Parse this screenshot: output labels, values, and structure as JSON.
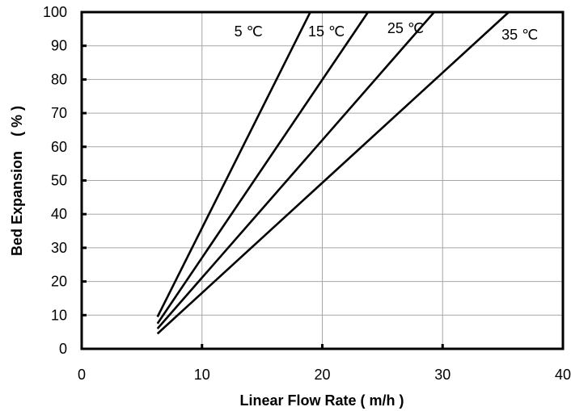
{
  "chart_data": {
    "type": "line",
    "xlabel": "Linear Flow Rate ( m/h )",
    "ylabel": "Bed Expansion　( % )",
    "xlim": [
      0,
      40
    ],
    "ylim": [
      0,
      100
    ],
    "xticks": [
      "0",
      "10",
      "20",
      "30",
      "40"
    ],
    "yticks": [
      "0",
      "10",
      "20",
      "30",
      "40",
      "50",
      "60",
      "70",
      "80",
      "90",
      "100"
    ],
    "grid": true,
    "series": [
      {
        "name": "5 ℃",
        "x": [
          6.3,
          19.0
        ],
        "y": [
          9.5,
          100
        ]
      },
      {
        "name": "15 ℃",
        "x": [
          6.3,
          23.8
        ],
        "y": [
          7.5,
          100
        ]
      },
      {
        "name": "25 ℃",
        "x": [
          6.3,
          29.3
        ],
        "y": [
          6.0,
          100
        ]
      },
      {
        "name": "35 ℃",
        "x": [
          6.3,
          35.5
        ],
        "y": [
          4.5,
          100
        ]
      }
    ]
  }
}
